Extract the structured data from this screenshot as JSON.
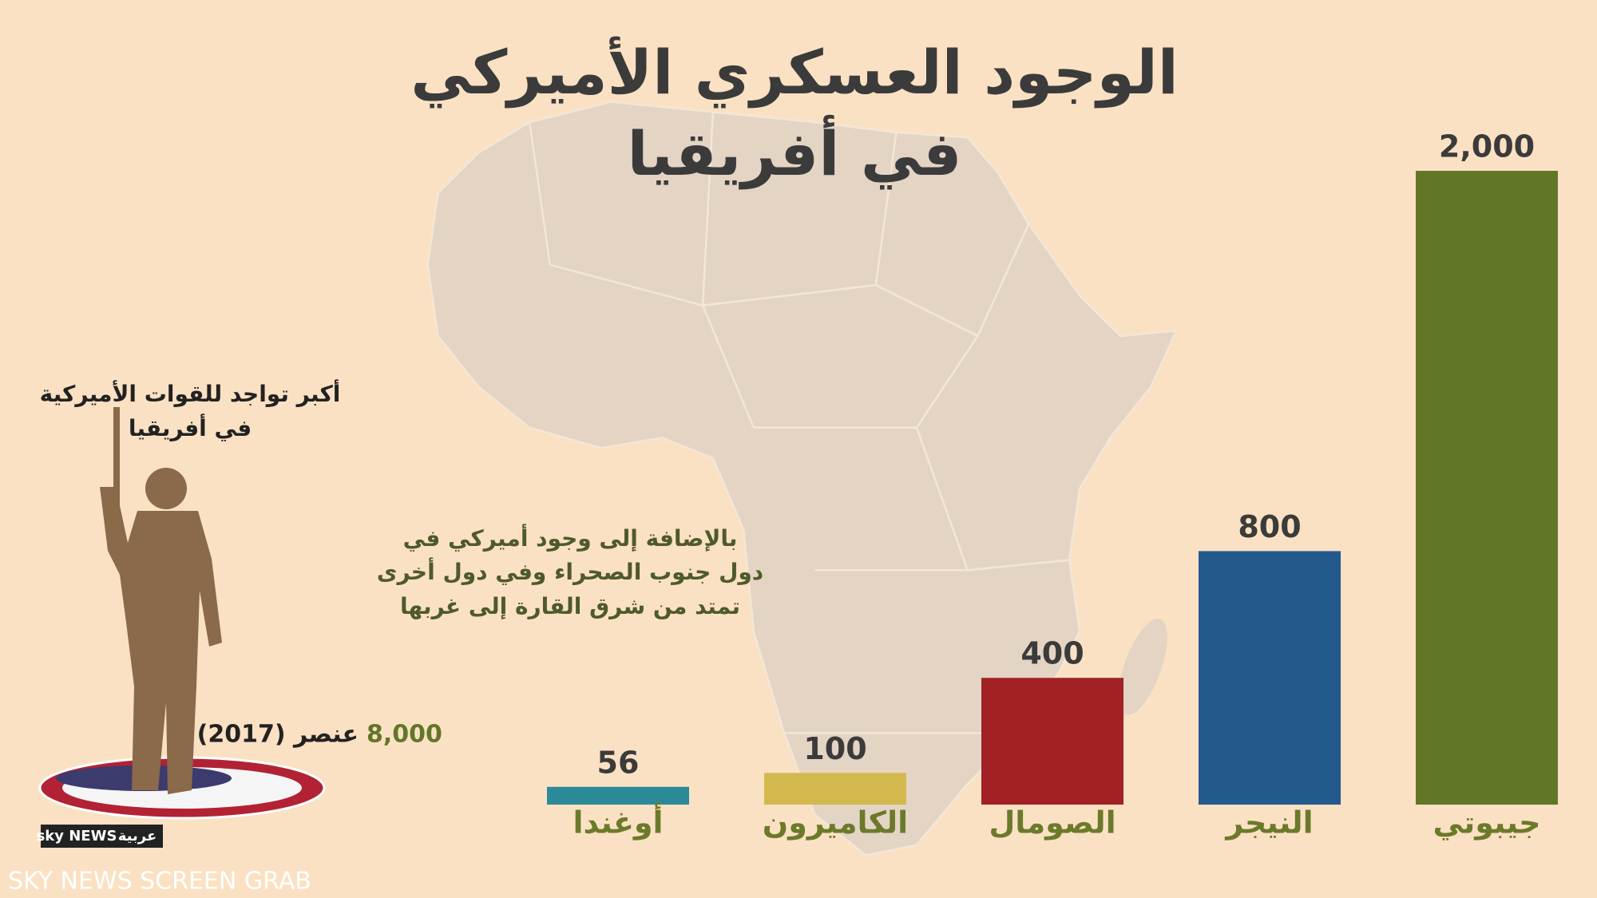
{
  "chart_data": {
    "type": "bar",
    "title": [
      "الوجود العسكري الأميركي",
      "في أفريقيا"
    ],
    "categories": [
      "أوغندا",
      "الكاميرون",
      "الصومال",
      "النيجر",
      "جيبوتي"
    ],
    "values": [
      56,
      100,
      400,
      800,
      2000
    ],
    "value_labels": [
      "56",
      "100",
      "400",
      "800",
      "2,000"
    ],
    "colors": [
      "#2b8a97",
      "#d3b94d",
      "#a12125",
      "#24598e",
      "#627628"
    ],
    "annotations": {
      "note": [
        "بالإضافة إلى وجود أميركي في",
        "دول جنوب الصحراء وفي دول أخرى",
        "تمتد من شرق القارة إلى غربها"
      ],
      "caption": [
        "أكبر تواجد للقوات الأميركية",
        "في أفريقيا"
      ],
      "total": "8,000",
      "total_unit": "عنصر (2017)",
      "logo": [
        "sky NEWS",
        "عربية"
      ],
      "watermark": "SKY NEWS SCREEN GRAB"
    }
  }
}
